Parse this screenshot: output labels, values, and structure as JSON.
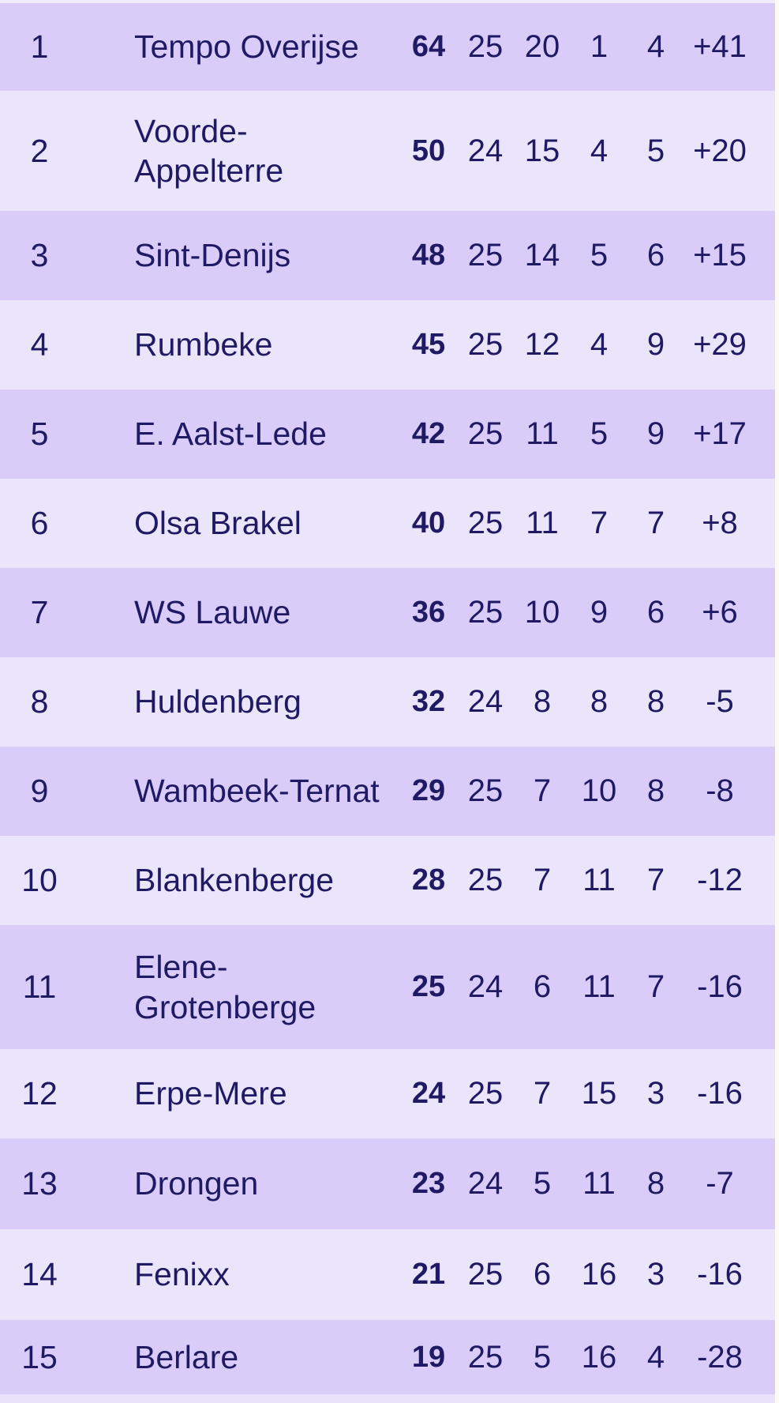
{
  "table": {
    "rows": [
      {
        "rank": "1",
        "team": "Tempo Overijse",
        "pts": "64",
        "played": "25",
        "won": "20",
        "lost": "1",
        "drawn": "4",
        "diff": "+41"
      },
      {
        "rank": "2",
        "team": "Voorde-Appelterre",
        "pts": "50",
        "played": "24",
        "won": "15",
        "lost": "4",
        "drawn": "5",
        "diff": "+20"
      },
      {
        "rank": "3",
        "team": "Sint-Denijs",
        "pts": "48",
        "played": "25",
        "won": "14",
        "lost": "5",
        "drawn": "6",
        "diff": "+15"
      },
      {
        "rank": "4",
        "team": "Rumbeke",
        "pts": "45",
        "played": "25",
        "won": "12",
        "lost": "4",
        "drawn": "9",
        "diff": "+29"
      },
      {
        "rank": "5",
        "team": "E. Aalst-Lede",
        "pts": "42",
        "played": "25",
        "won": "11",
        "lost": "5",
        "drawn": "9",
        "diff": "+17"
      },
      {
        "rank": "6",
        "team": "Olsa Brakel",
        "pts": "40",
        "played": "25",
        "won": "11",
        "lost": "7",
        "drawn": "7",
        "diff": "+8"
      },
      {
        "rank": "7",
        "team": "WS Lauwe",
        "pts": "36",
        "played": "25",
        "won": "10",
        "lost": "9",
        "drawn": "6",
        "diff": "+6"
      },
      {
        "rank": "8",
        "team": "Huldenberg",
        "pts": "32",
        "played": "24",
        "won": "8",
        "lost": "8",
        "drawn": "8",
        "diff": "-5"
      },
      {
        "rank": "9",
        "team": "Wambeek-Ternat",
        "pts": "29",
        "played": "25",
        "won": "7",
        "lost": "10",
        "drawn": "8",
        "diff": "-8"
      },
      {
        "rank": "10",
        "team": "Blankenberge",
        "pts": "28",
        "played": "25",
        "won": "7",
        "lost": "11",
        "drawn": "7",
        "diff": "-12"
      },
      {
        "rank": "11",
        "team": "Elene-Grotenberge",
        "pts": "25",
        "played": "24",
        "won": "6",
        "lost": "11",
        "drawn": "7",
        "diff": "-16"
      },
      {
        "rank": "12",
        "team": "Erpe-Mere",
        "pts": "24",
        "played": "25",
        "won": "7",
        "lost": "15",
        "drawn": "3",
        "diff": "-16"
      },
      {
        "rank": "13",
        "team": "Drongen",
        "pts": "23",
        "played": "24",
        "won": "5",
        "lost": "11",
        "drawn": "8",
        "diff": "-7"
      },
      {
        "rank": "14",
        "team": "Fenixx",
        "pts": "21",
        "played": "25",
        "won": "6",
        "lost": "16",
        "drawn": "3",
        "diff": "-16"
      },
      {
        "rank": "15",
        "team": "Berlare",
        "pts": "19",
        "played": "25",
        "won": "5",
        "lost": "16",
        "drawn": "4",
        "diff": "-28"
      }
    ]
  },
  "colors": {
    "row_dark": "#d9ccf8",
    "row_light": "#ebe5fb",
    "text": "#1f1a63",
    "top_strip": "#f1ecfb",
    "bottom_sliver": "#e9e2fa",
    "page_background": "#fbfaf3"
  }
}
